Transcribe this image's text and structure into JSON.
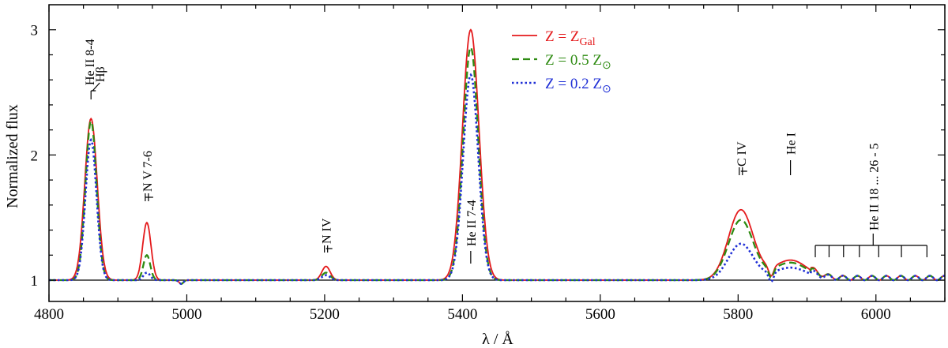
{
  "chart_data": {
    "type": "line",
    "xlabel": "λ / Å",
    "ylabel": "Normalized flux",
    "xlim": [
      4800,
      6100
    ],
    "ylim": [
      0.83,
      3.2
    ],
    "xticks": [
      4800,
      5000,
      5200,
      5400,
      5600,
      5800,
      6000
    ],
    "yticks": [
      1,
      2,
      3
    ],
    "continuum": 1.0,
    "legend_position": "top-center",
    "series": [
      {
        "name": "Z = Z",
        "name_sub": "Gal",
        "color": "#e41a1c",
        "dash": "solid",
        "base": 1.0,
        "lines": [
          {
            "c": 4861,
            "a": 1.29,
            "w": 9
          },
          {
            "c": 4942,
            "a": 0.46,
            "w": 6
          },
          {
            "c": 5202,
            "a": 0.11,
            "w": 6
          },
          {
            "c": 5412,
            "a": 2.0,
            "w": 12
          },
          {
            "c": 5804,
            "a": 0.56,
            "w": 18
          },
          {
            "c": 5876,
            "a": 0.16,
            "w": 25
          }
        ]
      },
      {
        "name": "Z = 0.5 Z",
        "name_sub": "⊙",
        "color": "#2e8b12",
        "dash": "dash",
        "base": 1.0,
        "lines": [
          {
            "c": 4861,
            "a": 1.27,
            "w": 8
          },
          {
            "c": 4942,
            "a": 0.2,
            "w": 5
          },
          {
            "c": 5202,
            "a": 0.06,
            "w": 6
          },
          {
            "c": 5412,
            "a": 1.86,
            "w": 11
          },
          {
            "c": 5804,
            "a": 0.48,
            "w": 18
          },
          {
            "c": 5876,
            "a": 0.14,
            "w": 25
          }
        ]
      },
      {
        "name": "Z = 0.2 Z",
        "name_sub": "⊙",
        "color": "#1f2fd6",
        "dash": "dot",
        "base": 1.0,
        "lines": [
          {
            "c": 4861,
            "a": 1.12,
            "w": 8
          },
          {
            "c": 4942,
            "a": 0.06,
            "w": 5
          },
          {
            "c": 5202,
            "a": 0.04,
            "w": 6
          },
          {
            "c": 5412,
            "a": 1.64,
            "w": 11
          },
          {
            "c": 5804,
            "a": 0.29,
            "w": 18
          },
          {
            "c": 5876,
            "a": 0.1,
            "w": 25
          }
        ]
      }
    ],
    "annotations": [
      {
        "text": "He II 8-4",
        "x": 4861
      },
      {
        "text": "Hβ",
        "x": 4861
      },
      {
        "text": "N V 7-6",
        "x": 4942
      },
      {
        "text": "N IV",
        "x": 5202
      },
      {
        "text": "He II 7-4",
        "x": 5412
      },
      {
        "text": "C IV",
        "x": 5804
      },
      {
        "text": "He I",
        "x": 5876
      },
      {
        "text": "He II 18 ... 26 - 5",
        "x": 5996
      }
    ],
    "he_series_ticks": [
      5912,
      5932,
      5953,
      5976,
      6004,
      6037,
      6074
    ]
  }
}
